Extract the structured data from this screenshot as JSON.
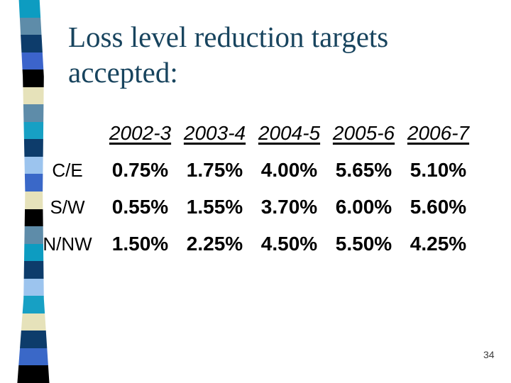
{
  "slide": {
    "title_line1": "Loss level reduction targets",
    "title_line2": "accepted:",
    "title_color": "#18445e",
    "page_number": "34"
  },
  "table": {
    "columns": [
      "2002-3",
      "2003-4",
      "2004-5",
      "2005-6",
      "2006-7"
    ],
    "rows": [
      {
        "label": "C/E",
        "values": [
          "0.75%",
          "1.75%",
          "4.00%",
          "5.65%",
          "5.10%"
        ]
      },
      {
        "label": "S/W",
        "values": [
          "0.55%",
          "1.55%",
          "3.70%",
          "6.00%",
          "5.60%"
        ]
      },
      {
        "label": "N/NW",
        "values": [
          "1.50%",
          "2.25%",
          "4.50%",
          "5.50%",
          "4.25%"
        ]
      }
    ]
  },
  "decoration": {
    "stripe_colors": [
      "#0d9cc1",
      "#5e8ca9",
      "#0d3c6b",
      "#3c64cb",
      "#000000",
      "#e6e2ba",
      "#5e8ca9",
      "#17a0c4",
      "#0d3c6b",
      "#9cc4ee",
      "#3a68c8",
      "#e6e2ba",
      "#000000",
      "#5e8ca9",
      "#0d9cc1",
      "#0d3c6b",
      "#9cc4ee",
      "#17a0c4",
      "#e6e2ba",
      "#0d3c6b",
      "#3a68c8",
      "#000000"
    ]
  }
}
